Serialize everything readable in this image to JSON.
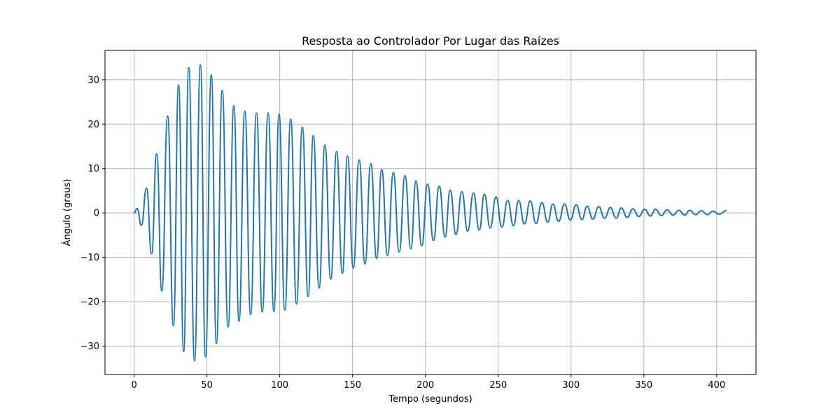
{
  "chart_data": {
    "type": "line",
    "title": "Resposta ao Controlador Por Lugar das Raízes",
    "xlabel": "Tempo (segundos)",
    "ylabel": "Ângulo (graus)",
    "xlim": [
      -20,
      427
    ],
    "ylim": [
      -36.4,
      36.6
    ],
    "xticks": [
      0,
      50,
      100,
      150,
      200,
      250,
      300,
      350,
      400
    ],
    "yticks": [
      -30,
      -20,
      -10,
      0,
      10,
      20,
      30
    ],
    "xtick_labels": [
      "0",
      "50",
      "100",
      "150",
      "200",
      "250",
      "300",
      "350",
      "400"
    ],
    "ytick_labels": [
      "−30",
      "−20",
      "−10",
      "0",
      "10",
      "20",
      "30"
    ],
    "grid": true,
    "line_color": "#1f77b4",
    "series": [
      {
        "x": [
          0,
          2,
          5,
          8.5,
          12,
          15.5,
          19,
          23,
          27,
          30.5,
          34,
          37.5,
          41.5,
          45.5,
          49,
          53,
          56.5,
          60.5,
          64.5,
          68.5,
          72,
          76,
          80,
          84,
          88,
          92,
          96,
          99.5,
          103.5,
          107.5,
          111.5,
          115.5,
          119.5,
          123,
          127,
          131,
          135,
          139,
          143,
          146.5,
          150.5,
          154.5,
          158.5,
          162.5,
          166.5,
          170,
          174,
          178,
          182,
          186,
          190,
          193.5,
          197.5,
          201.5,
          205.5,
          209.5,
          213.5,
          217,
          221,
          225,
          229,
          233,
          237,
          240.5,
          244.5,
          248.5,
          252.5,
          256.5,
          260.5,
          264,
          268,
          272,
          276,
          280,
          284,
          287.5,
          291.5,
          295.5,
          299.5,
          303.5,
          307.5,
          311,
          315,
          319,
          323,
          327,
          331,
          334.5,
          338.5,
          342.5,
          346.5,
          350.5,
          354.5,
          358,
          362,
          366,
          370,
          374,
          378,
          381.5,
          385.5,
          389.5,
          393.5,
          397.5,
          401.5,
          406.5
        ],
        "y": [
          0,
          1,
          -2.8,
          5.6,
          -9.2,
          13.3,
          -17.6,
          21.8,
          -25.4,
          28.8,
          -31.2,
          32.7,
          -33.3,
          33.3,
          -32.4,
          31,
          -29.4,
          27.6,
          -25.7,
          24.2,
          -24.4,
          22.9,
          -22.9,
          22.5,
          -22.3,
          22.5,
          -22.2,
          22.2,
          -21.9,
          21.1,
          -20.5,
          19.3,
          -18.8,
          17.4,
          -16.9,
          15.3,
          -14.9,
          13.8,
          -13.6,
          12.8,
          -12.4,
          11.9,
          -11.5,
          11.1,
          -10.3,
          9.8,
          -9.6,
          9.1,
          -8.8,
          8.4,
          -8.1,
          7.2,
          -7.4,
          6.5,
          -6.2,
          6,
          -5.4,
          5.1,
          -4.9,
          4.8,
          -4.1,
          4.5,
          -3.9,
          4.2,
          -3.4,
          3.6,
          -3.2,
          2.8,
          -2.9,
          2.8,
          -2.5,
          2.7,
          -2.4,
          2.3,
          -2.1,
          2,
          -1.9,
          2,
          -1.6,
          1.8,
          -1.5,
          1.5,
          -1.4,
          1.4,
          -1.2,
          1.2,
          -1.2,
          1.1,
          -1,
          0.9,
          -0.8,
          0.8,
          -0.7,
          0.8,
          -0.6,
          0.7,
          -0.5,
          0.6,
          -0.5,
          0.6,
          -0.4,
          0.5,
          -0.4,
          0.4,
          -0.3,
          0.5
        ]
      }
    ]
  }
}
